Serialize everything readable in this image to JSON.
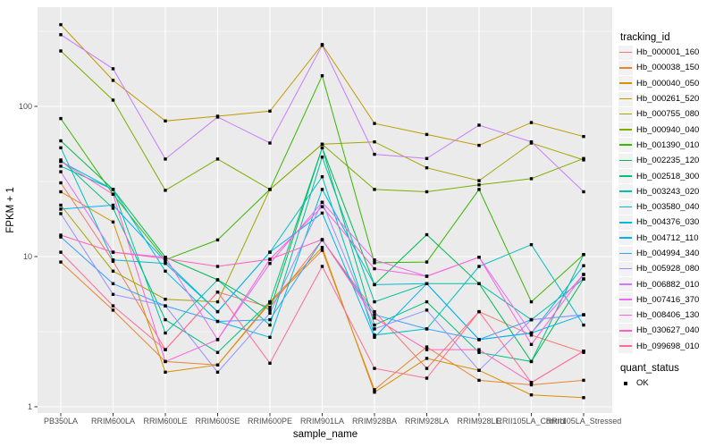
{
  "axes": {
    "x_title": "sample_name",
    "y_title": "FPKM + 1",
    "y_ticks": [
      "1",
      "10",
      "100"
    ]
  },
  "legend": {
    "tracking_title": "tracking_id",
    "quant_title": "quant_status",
    "quant_items": [
      {
        "label": "OK"
      }
    ]
  },
  "style": {
    "panel_bg": "#ebebeb",
    "grid_color": "#ffffff",
    "tick_text_color": "#4d4d4d",
    "tick_mark_color": "#333333",
    "point_color": "#000000",
    "legend_key_bg": "#f2f2f2"
  },
  "chart_data": {
    "type": "line",
    "title": "",
    "xlabel": "sample_name",
    "ylabel": "FPKM + 1",
    "y_scale": "log10",
    "ylim": [
      1,
      450
    ],
    "y_major_breaks": [
      1,
      10,
      100
    ],
    "y_minor_breaks": [
      3.162,
      31.62,
      316.2
    ],
    "grid": true,
    "legend_position": "right",
    "point_shape": "filled-square",
    "quant_status_all": "OK",
    "categories": [
      "PB350LA",
      "RRIM600LA",
      "RRIM600LE",
      "RRIM600SE",
      "RRIM600PE",
      "RRIM901LA",
      "RRIM928BA",
      "RRIM928LA",
      "RRIM928LE",
      "RRII105LA_Control",
      "RRII105LA_Stressed"
    ],
    "series": [
      {
        "name": "Hb_000001_160",
        "color": "#F8766D",
        "values": [
          31,
          9.3,
          2.4,
          5.8,
          4.6,
          12.9,
          4.3,
          1.8,
          4.3,
          3.0,
          2.3
        ]
      },
      {
        "name": "Hb_000038_150",
        "color": "#EA8331",
        "values": [
          9.2,
          4.4,
          2.0,
          1.9,
          4.9,
          11,
          1.3,
          2.5,
          1.5,
          1.4,
          1.5
        ]
      },
      {
        "name": "Hb_000040_050",
        "color": "#D89000",
        "values": [
          27,
          17,
          1.7,
          1.9,
          5.0,
          11.5,
          1.25,
          2.1,
          1.75,
          1.2,
          1.15
        ]
      },
      {
        "name": "Hb_000261_520",
        "color": "#C09B00",
        "values": [
          350,
          149,
          80,
          86,
          93,
          258,
          77,
          65,
          55,
          78,
          63
        ]
      },
      {
        "name": "Hb_000755_080",
        "color": "#A3A500",
        "values": [
          22,
          8.0,
          5.2,
          5.0,
          28,
          56,
          58,
          39,
          32,
          57,
          44
        ]
      },
      {
        "name": "Hb_000940_040",
        "color": "#7CAE00",
        "values": [
          234,
          110,
          27.6,
          44.6,
          28,
          56,
          28,
          27,
          30,
          33,
          45
        ]
      },
      {
        "name": "Hb_001390_010",
        "color": "#39B600",
        "values": [
          83,
          26,
          9.5,
          12.9,
          28,
          160,
          9.1,
          9.2,
          28,
          5.0,
          10.3
        ]
      },
      {
        "name": "Hb_002235_120",
        "color": "#00BB4E",
        "values": [
          59,
          28,
          9.9,
          7.0,
          4.4,
          53,
          6.5,
          14,
          6.6,
          2.0,
          7.1
        ]
      },
      {
        "name": "Hb_002518_300",
        "color": "#00BF7D",
        "values": [
          44,
          21,
          3.8,
          2.3,
          5.0,
          53,
          3.5,
          5.0,
          2.3,
          2.0,
          10.3
        ]
      },
      {
        "name": "Hb_003243_020",
        "color": "#00C1A3",
        "values": [
          40,
          28,
          3.1,
          7.0,
          3.5,
          46,
          5.0,
          6.6,
          6.6,
          3.8,
          7.1
        ]
      },
      {
        "name": "Hb_003580_040",
        "color": "#00BFC4",
        "values": [
          53,
          9.5,
          9.0,
          4.3,
          10.7,
          34,
          3.0,
          3.3,
          8.6,
          12,
          3.5
        ]
      },
      {
        "name": "Hb_004376_030",
        "color": "#00BAE0",
        "values": [
          43,
          28,
          8.0,
          3.7,
          2.9,
          28,
          6.5,
          6.6,
          2.8,
          3.1,
          8.7
        ]
      },
      {
        "name": "Hb_004712_110",
        "color": "#00B0F6",
        "values": [
          20.7,
          22,
          9.3,
          4.3,
          10.7,
          19.5,
          2.9,
          6.6,
          2.8,
          3.1,
          4.1
        ]
      },
      {
        "name": "Hb_004994_340",
        "color": "#35A2FF",
        "values": [
          13.5,
          6.6,
          4.7,
          3.7,
          3.8,
          12.9,
          4.1,
          3.3,
          2.8,
          3.8,
          4.1
        ]
      },
      {
        "name": "Hb_005928_080",
        "color": "#9590FF",
        "values": [
          19.3,
          5.6,
          4.7,
          1.7,
          4.2,
          23,
          3.3,
          4.4,
          1.75,
          3.8,
          4.1
        ]
      },
      {
        "name": "Hb_006882_010",
        "color": "#C77CFF",
        "values": [
          300,
          178,
          44.6,
          85,
          57,
          255,
          48,
          45,
          75,
          58,
          27
        ]
      },
      {
        "name": "Hb_007416_370",
        "color": "#E76BF3",
        "values": [
          36.7,
          10.7,
          9.9,
          2.8,
          9.0,
          23,
          9.5,
          7.4,
          9.9,
          3.1,
          7.6
        ]
      },
      {
        "name": "Hb_008406_130",
        "color": "#FA62DB",
        "values": [
          43,
          26,
          2.0,
          2.8,
          9.6,
          21.5,
          8.3,
          7.4,
          9.9,
          2.6,
          7.6
        ]
      },
      {
        "name": "Hb_030627_040",
        "color": "#FF62BC",
        "values": [
          13.9,
          10.7,
          9.7,
          8.6,
          9.6,
          13,
          3.9,
          2.4,
          2.4,
          1.45,
          2.35
        ]
      },
      {
        "name": "Hb_099698_010",
        "color": "#FF6A98",
        "values": [
          10.7,
          4.7,
          2.4,
          5.8,
          1.95,
          8.6,
          1.8,
          1.55,
          4.3,
          1.45,
          2.35
        ]
      }
    ]
  }
}
